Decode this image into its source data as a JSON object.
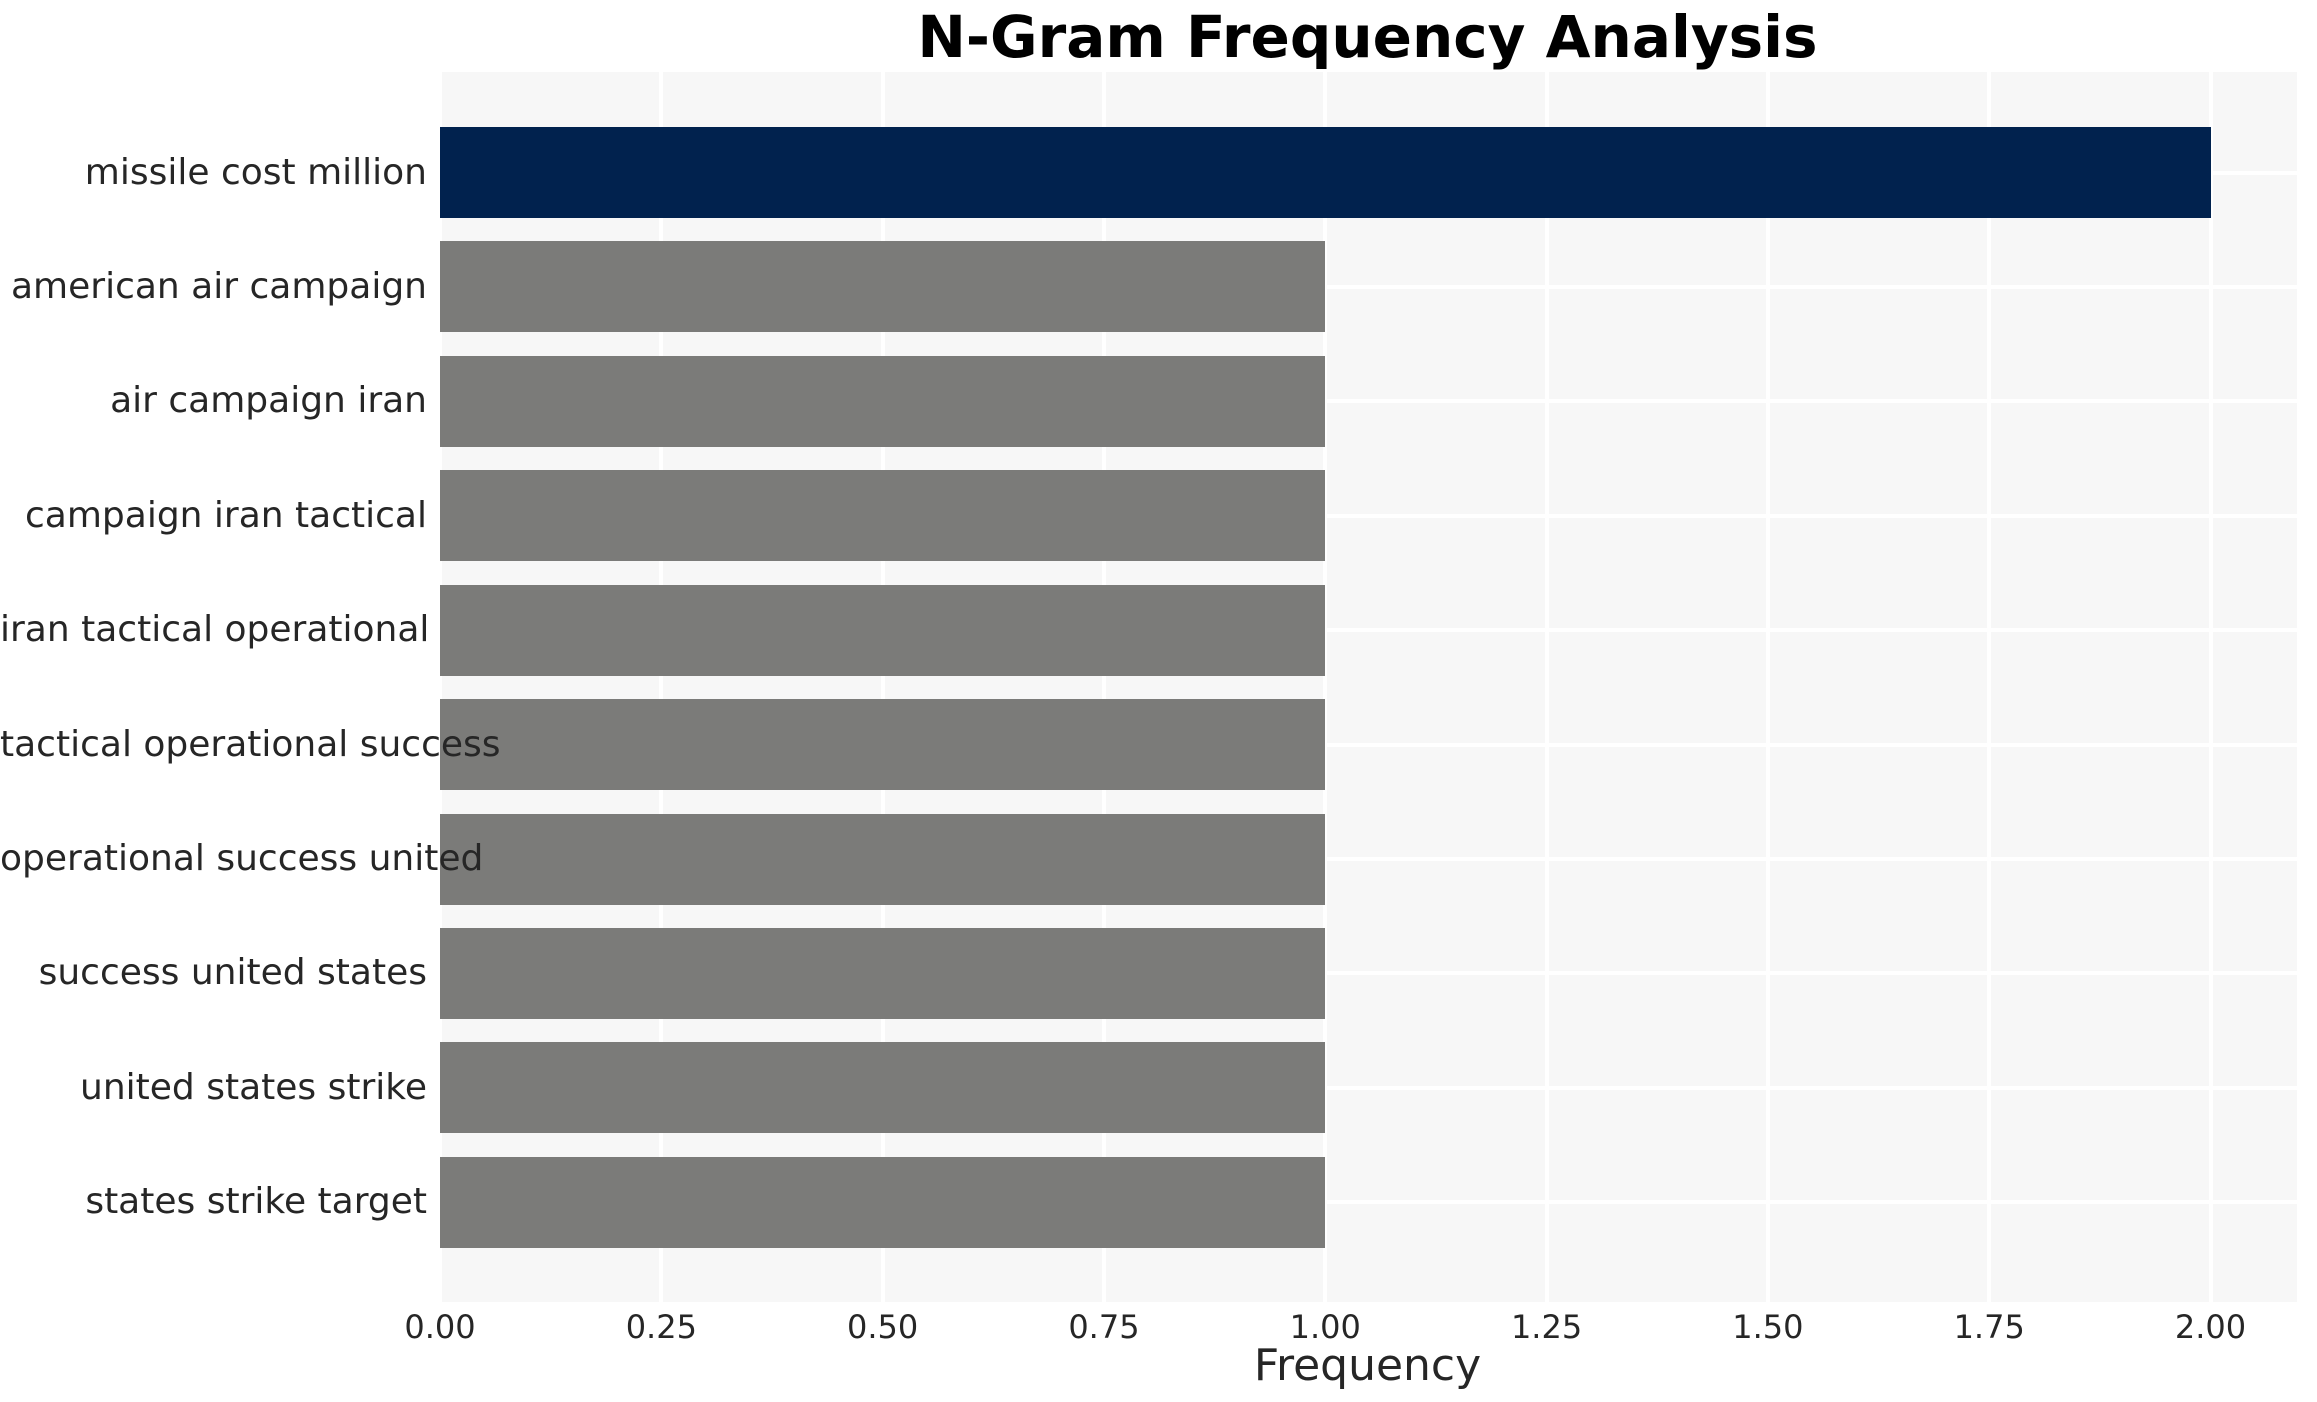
{
  "chart_data": {
    "type": "bar",
    "orientation": "horizontal",
    "title": "N-Gram Frequency Analysis",
    "xlabel": "Frequency",
    "ylabel": "",
    "categories": [
      "missile cost million",
      "american air campaign",
      "air campaign iran",
      "campaign iran tactical",
      "iran tactical operational",
      "tactical operational success",
      "operational success united",
      "success united states",
      "united states strike",
      "states strike target"
    ],
    "values": [
      2,
      1,
      1,
      1,
      1,
      1,
      1,
      1,
      1,
      1
    ],
    "highlight_index": 0,
    "xlim": [
      0,
      2.1
    ],
    "xtick_values": [
      0,
      0.25,
      0.5,
      0.75,
      1,
      1.25,
      1.5,
      1.75,
      2
    ],
    "xtick_labels": [
      "0.00",
      "0.25",
      "0.50",
      "0.75",
      "1.00",
      "1.25",
      "1.50",
      "1.75",
      "2.00"
    ],
    "grid": true,
    "legend": false,
    "colors": {
      "highlight_bar": "#01224e",
      "bar": "#7b7b79",
      "plot_background": "#f7f7f7",
      "gridline": "#ffffff",
      "tick_text": "#262626",
      "title_text": "#000000",
      "page_background": "#ffffff"
    }
  }
}
